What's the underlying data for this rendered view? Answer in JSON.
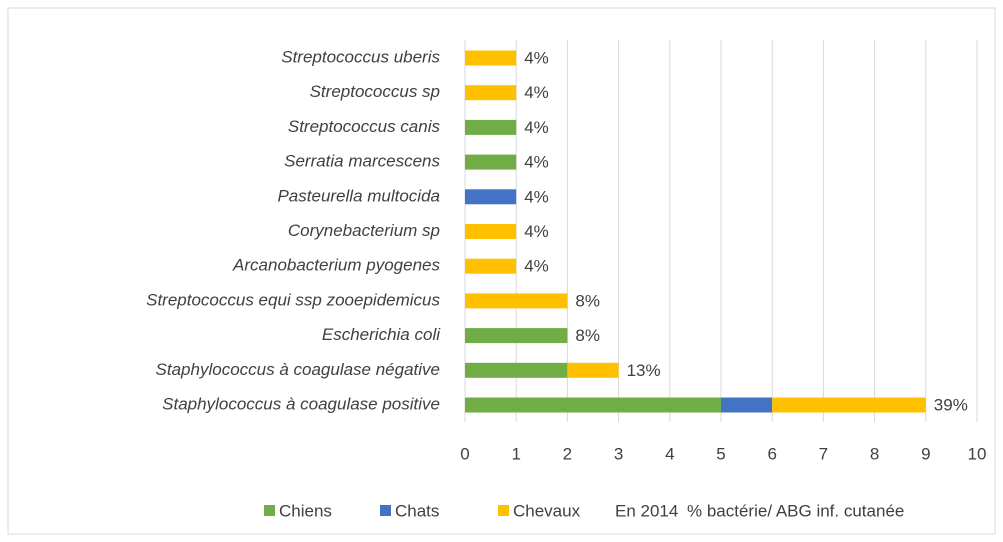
{
  "chart_data": {
    "type": "stacked_barh",
    "categories": [
      "Streptococcus uberis",
      "Streptococcus sp",
      "Streptococcus canis",
      "Serratia marcescens",
      "Pasteurella multocida",
      "Corynebacterium sp",
      "Arcanobacterium pyogenes",
      "Streptococcus equi ssp zooepidemicus",
      "Escherichia coli",
      "Staphylococcus à coagulase négative",
      "Staphylococcus à coagulase positive"
    ],
    "series": [
      {
        "name": "Chiens",
        "color": "#70ad47",
        "values": [
          0,
          0,
          1,
          1,
          0,
          0,
          0,
          0,
          2,
          2,
          5
        ]
      },
      {
        "name": "Chats",
        "color": "#4472c4",
        "values": [
          0,
          0,
          0,
          0,
          1,
          0,
          0,
          0,
          0,
          0,
          1
        ]
      },
      {
        "name": "Chevaux",
        "color": "#ffc000",
        "values": [
          1,
          1,
          0,
          0,
          0,
          1,
          1,
          2,
          0,
          1,
          3
        ]
      },
      {
        "name": "En 2014",
        "color": null,
        "values": [
          null,
          null,
          null,
          null,
          null,
          null,
          null,
          null,
          null,
          null,
          null
        ]
      },
      {
        "name": "% bactérie/ ABG inf. cutanée",
        "color": null,
        "values": [
          4,
          4,
          4,
          4,
          4,
          4,
          4,
          8,
          8,
          13,
          39
        ],
        "value_labels": [
          "4%",
          "4%",
          "4%",
          "4%",
          "4%",
          "4%",
          "4%",
          "8%",
          "8%",
          "13%",
          "39%"
        ]
      }
    ],
    "xlim": [
      0,
      10
    ],
    "xticks": [
      0,
      1,
      2,
      3,
      4,
      5,
      6,
      7,
      8,
      9,
      10
    ],
    "grid": true,
    "legend": "bottom"
  }
}
